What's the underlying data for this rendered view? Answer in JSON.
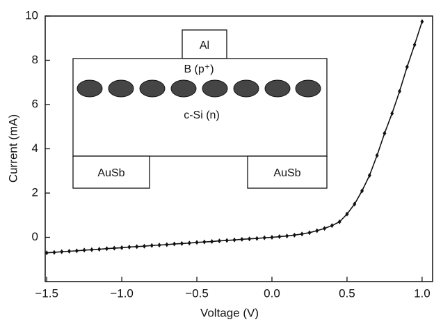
{
  "chart_data": {
    "type": "line",
    "x_label": "Voltage (V)",
    "y_label": "Current (mA)",
    "x": [
      -1.5,
      -1.45,
      -1.4,
      -1.35,
      -1.3,
      -1.25,
      -1.2,
      -1.15,
      -1.1,
      -1.05,
      -1.0,
      -0.95,
      -0.9,
      -0.85,
      -0.8,
      -0.75,
      -0.7,
      -0.65,
      -0.6,
      -0.55,
      -0.5,
      -0.45,
      -0.4,
      -0.35,
      -0.3,
      -0.25,
      -0.2,
      -0.15,
      -0.1,
      -0.05,
      0,
      0.05,
      0.1,
      0.15,
      0.2,
      0.25,
      0.3,
      0.35,
      0.4,
      0.45,
      0.5,
      0.55,
      0.6,
      0.65,
      0.7,
      0.75,
      0.8,
      0.85,
      0.9,
      0.95,
      1.0
    ],
    "series": [
      {
        "color": "#111111",
        "values": [
          -0.7,
          -0.68,
          -0.65,
          -0.63,
          -0.61,
          -0.58,
          -0.56,
          -0.54,
          -0.51,
          -0.49,
          -0.47,
          -0.44,
          -0.42,
          -0.4,
          -0.37,
          -0.35,
          -0.33,
          -0.3,
          -0.28,
          -0.26,
          -0.23,
          -0.21,
          -0.19,
          -0.16,
          -0.14,
          -0.12,
          -0.09,
          -0.07,
          -0.05,
          -0.02,
          0,
          0.03,
          0.06,
          0.1,
          0.15,
          0.21,
          0.3,
          0.4,
          0.53,
          0.7,
          1.05,
          1.5,
          2.1,
          2.8,
          3.7,
          4.7,
          5.6,
          6.6,
          7.7,
          8.7,
          9.75
        ]
      }
    ],
    "xlim": [
      -1.51,
      1.07
    ],
    "ylim": [
      -2,
      10
    ],
    "xticks": [
      {
        "value": -1.5,
        "label": "−1.5"
      },
      {
        "value": -1.0,
        "label": "−1.0"
      },
      {
        "value": -0.5,
        "label": "−0.5"
      },
      {
        "value": 0,
        "label": "0.0"
      },
      0.5,
      {
        "value": 1.0,
        "label": "1.0"
      }
    ],
    "yticks": [
      0,
      2,
      4,
      6,
      8,
      10
    ],
    "inset": {
      "top_contact": "Al",
      "layer": "B (p⁺)",
      "substrate": "c-Si (n)",
      "left_contact": "AuSb",
      "right_contact": "AuSb"
    }
  }
}
